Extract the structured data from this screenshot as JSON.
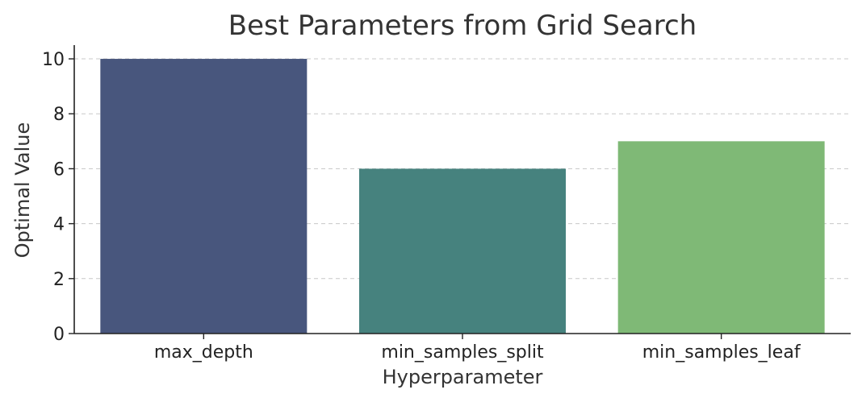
{
  "chart_data": {
    "type": "bar",
    "title": "Best Parameters from Grid Search",
    "xlabel": "Hyperparameter",
    "ylabel": "Optimal Value",
    "categories": [
      "max_depth",
      "min_samples_split",
      "min_samples_leaf"
    ],
    "values": [
      10,
      6,
      7
    ],
    "colors": [
      "#48567d",
      "#46827e",
      "#7fb976"
    ],
    "ylim": [
      0,
      10.5
    ],
    "yticks": [
      0,
      2,
      4,
      6,
      8,
      10
    ],
    "grid": "y-dashed",
    "legend": "none"
  }
}
